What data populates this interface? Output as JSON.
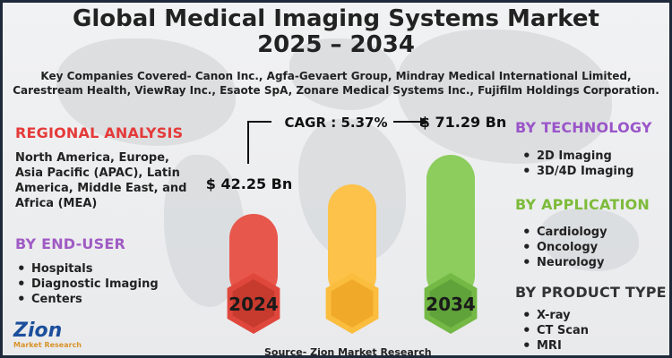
{
  "title_line1": "Global Medical Imaging Systems Market",
  "title_line2": "2025 – 2034",
  "companies": "Key Companies Covered- Canon Inc., Agfa-Gevaert Group, Mindray Medical International Limited, Carestream Health, ViewRay Inc., Esaote SpA, Zonare Medical Systems Inc., Fujifilm Holdings Corporation.",
  "regional": {
    "heading": "REGIONAL ANALYSIS",
    "text": "North America, Europe, Asia Pacific (APAC), Latin America, Middle East, and Africa (MEA)"
  },
  "end_user": {
    "heading": "BY END-USER",
    "items": [
      "Hospitals",
      "Diagnostic Imaging",
      "Centers"
    ]
  },
  "technology": {
    "heading": "BY TECHNOLOGY",
    "items": [
      "2D Imaging",
      "3D/4D Imaging"
    ]
  },
  "application": {
    "heading": "BY APPLICATION",
    "items": [
      "Cardiology",
      "Oncology",
      "Neurology"
    ]
  },
  "product_type": {
    "heading": "BY PRODUCT TYPE",
    "items": [
      "X-ray",
      "CT Scan",
      "MRI"
    ]
  },
  "source": "Source- Zion Market Research",
  "logo": {
    "name": "Zion",
    "tagline": "Market Research"
  },
  "colors": {
    "regional_heading": "#e53a3a",
    "end_user_heading": "#a05bc4",
    "technology_heading": "#9a55c9",
    "application_heading": "#7dbb3a",
    "product_heading": "#333333",
    "bar_2024": "#e8574c",
    "bar_mid": "#fdc24a",
    "bar_2034": "#8ccd5e"
  },
  "chart_data": {
    "type": "bar",
    "categories": [
      "2024",
      "",
      "2034"
    ],
    "values": [
      42.25,
      null,
      71.29
    ],
    "value_labels": [
      "$ 42.25 Bn",
      "",
      "$ 71.29 Bn"
    ],
    "cagr_label": "CAGR : 5.37%",
    "unit": "USD Bn"
  }
}
